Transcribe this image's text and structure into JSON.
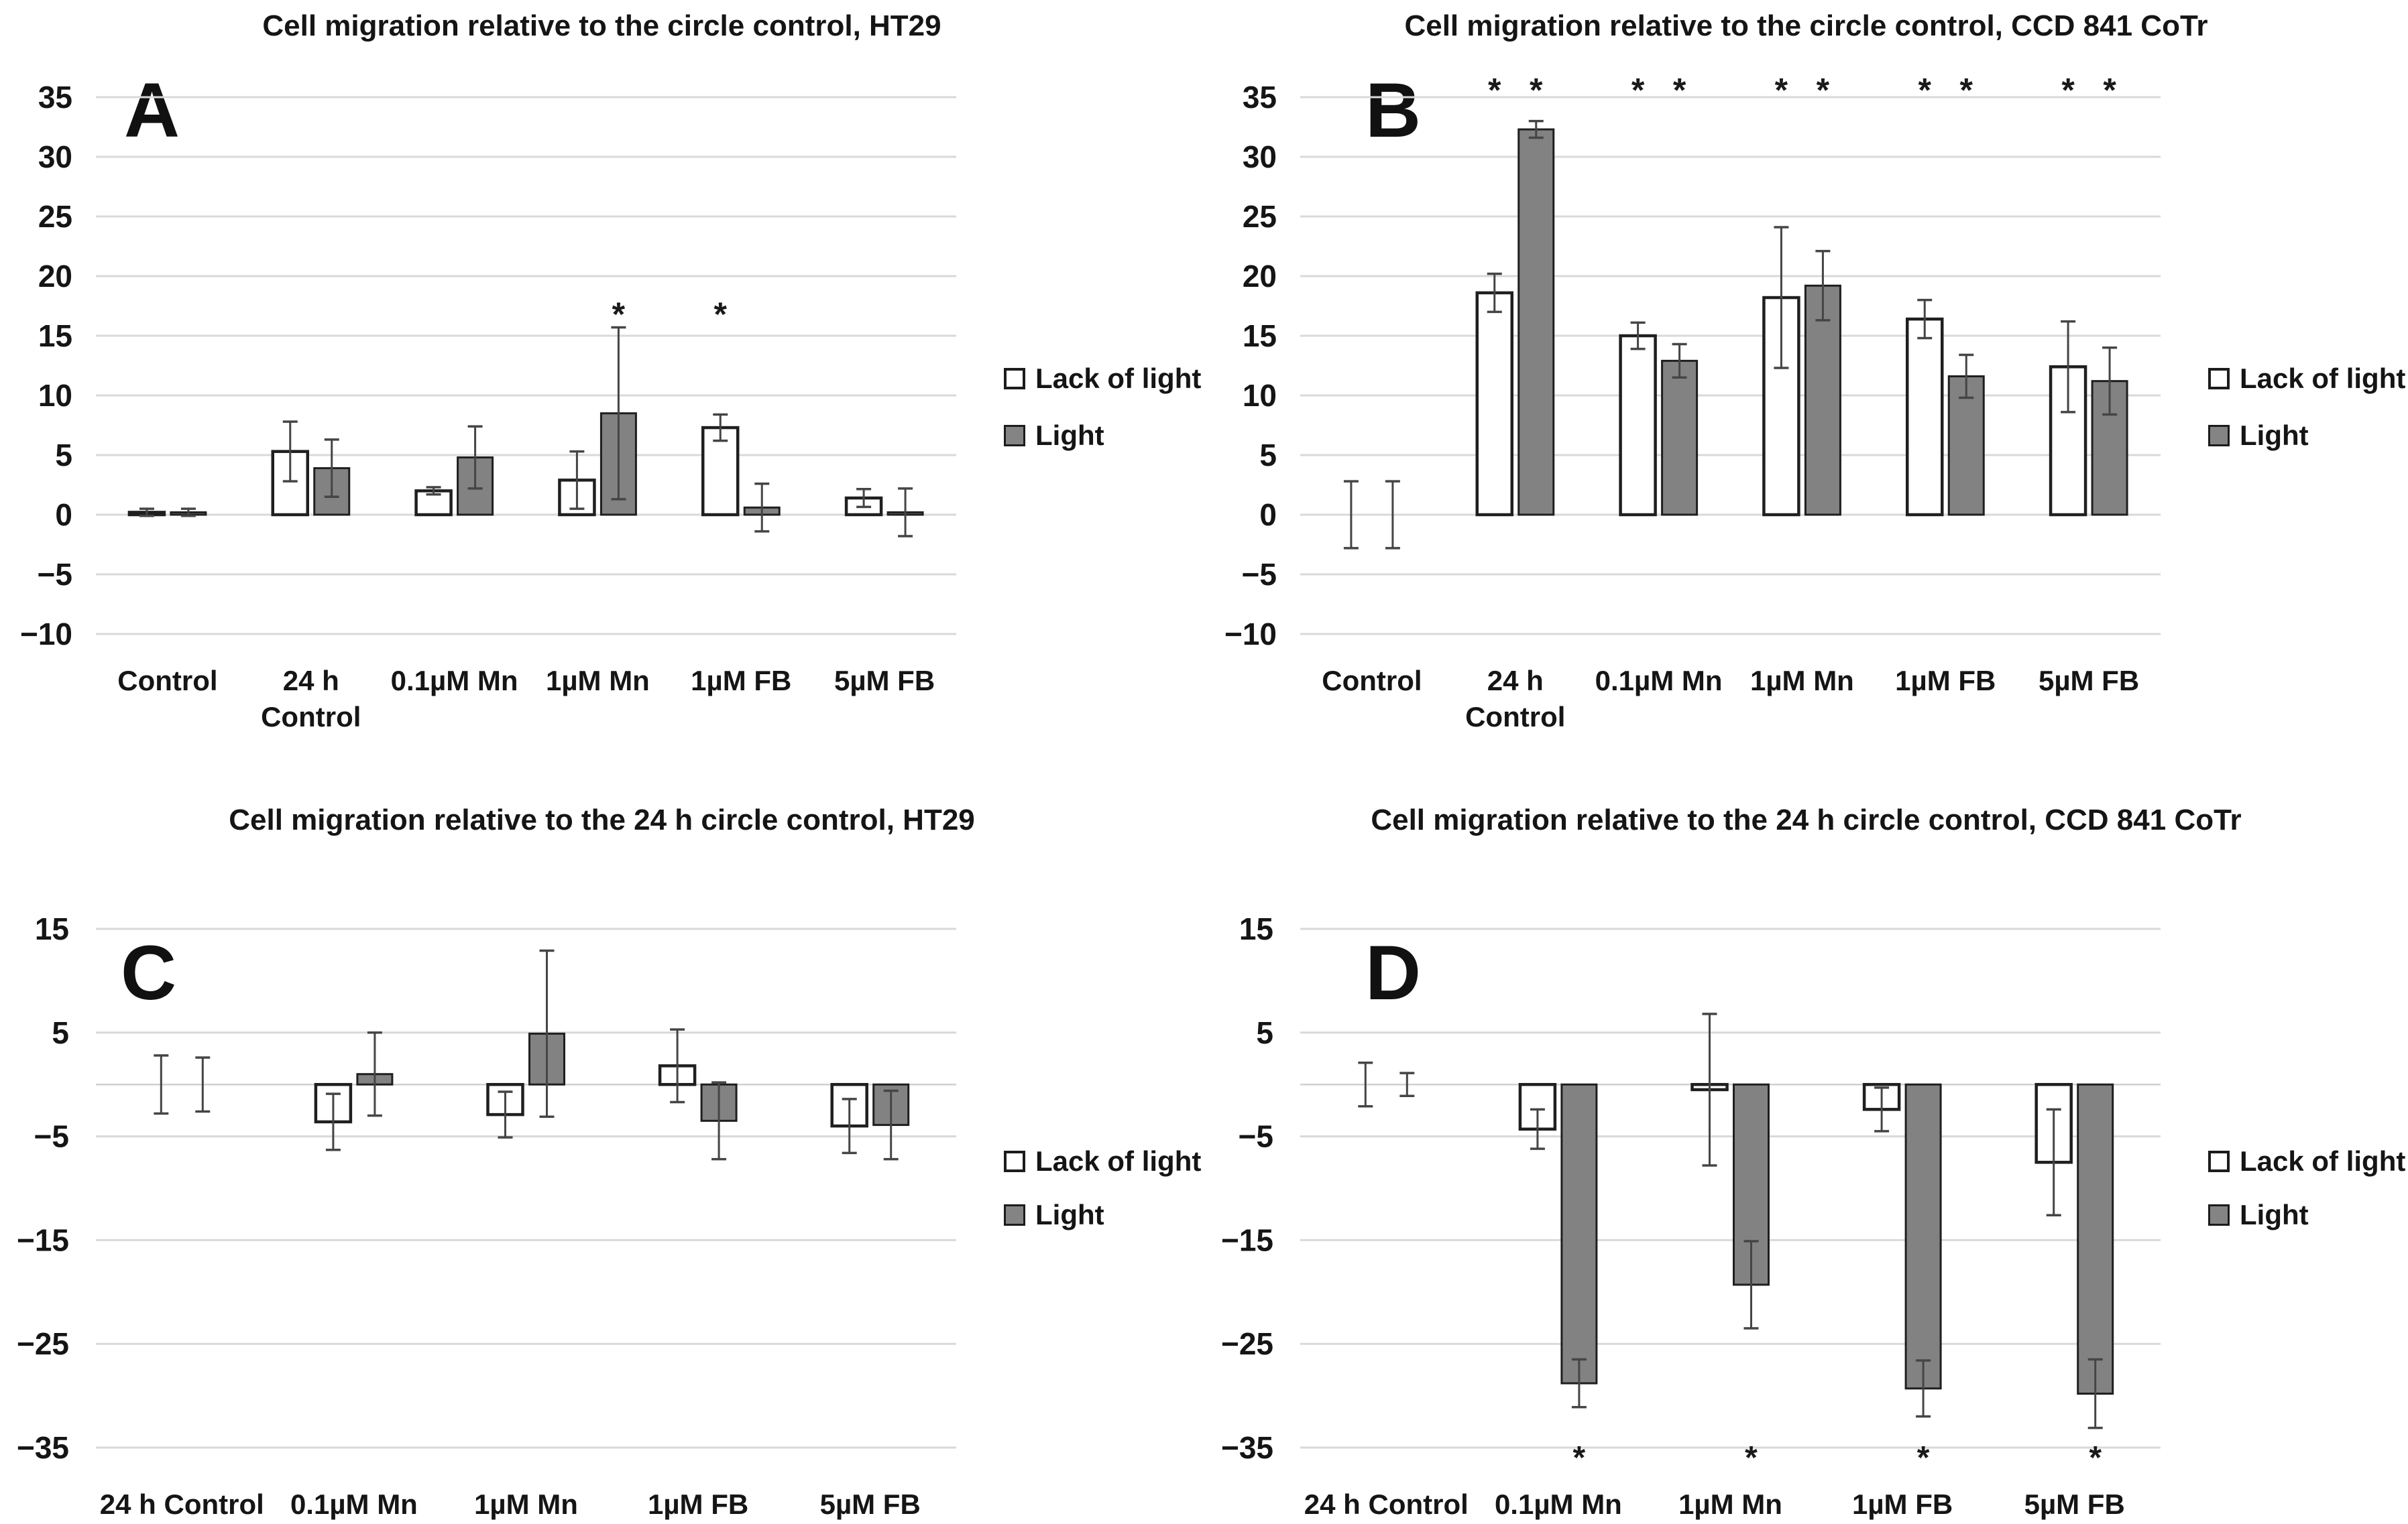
{
  "page": {
    "background": "#ffffff"
  },
  "colors": {
    "gridline": "#d9d9d9",
    "zero_axis": "#d0d0d0",
    "bar_lack_fill": "#ffffff",
    "bar_light_fill": "#828282",
    "bar_stroke": "#1f1f1f",
    "error_bar": "#454545",
    "text": "#151515",
    "asterisk": "#1a1a1a"
  },
  "legend": {
    "items": [
      {
        "label": "Lack of light",
        "swatch": "white-outlined-square"
      },
      {
        "label": "Light",
        "swatch": "gray-square"
      }
    ]
  },
  "chart_data": [
    {
      "panel_label": "A",
      "type": "bar",
      "title": "Cell migration relative to the circle control, HT29",
      "categories": [
        [
          "Control"
        ],
        [
          "24 h",
          "Control"
        ],
        [
          "0.1µM Mn"
        ],
        [
          "1µM Mn"
        ],
        [
          "1µM FB"
        ],
        [
          "5µM FB"
        ]
      ],
      "ylim": [
        -10,
        35
      ],
      "yticks": [
        35,
        30,
        25,
        20,
        15,
        10,
        5,
        0,
        -5,
        -10
      ],
      "grid": true,
      "legend_position": "right",
      "series": [
        {
          "name": "Lack of light",
          "values": [
            0.2,
            5.3,
            2.0,
            2.9,
            7.3,
            1.4
          ],
          "errors": [
            0.3,
            2.5,
            0.3,
            2.4,
            1.1,
            0.75
          ]
        },
        {
          "name": "Light",
          "values": [
            0.2,
            3.9,
            4.8,
            8.5,
            0.6,
            0.2
          ],
          "errors": [
            0.3,
            2.4,
            2.6,
            7.2,
            2.0,
            2.0
          ]
        }
      ],
      "asterisks": [
        {
          "cat": 3,
          "series": 1,
          "value": 16.8
        },
        {
          "cat": 4,
          "series": 0,
          "value": 16.8
        }
      ],
      "layout": {
        "plot_left": 143,
        "plot_right": 1426,
        "y_top": 145,
        "y_bottom": 946,
        "tick_x": 108,
        "tick_font": 46,
        "cat_font": 42,
        "cat_baseline": 1030,
        "cat_line_height": 54,
        "letter_x": 185,
        "letter_top": 108,
        "letter_font": 115,
        "title_top": 14,
        "legend_tops": [
          541,
          626
        ],
        "asterisk_font": 50
      }
    },
    {
      "panel_label": "B",
      "type": "bar",
      "title": "Cell migration relative to the circle control, CCD 841 CoTr",
      "categories": [
        [
          "Control"
        ],
        [
          "24 h",
          "Control"
        ],
        [
          "0.1µM Mn"
        ],
        [
          "1µM Mn"
        ],
        [
          "1µM FB"
        ],
        [
          "5µM FB"
        ]
      ],
      "ylim": [
        -10,
        35
      ],
      "yticks": [
        35,
        30,
        25,
        20,
        15,
        10,
        5,
        0,
        -5,
        -10
      ],
      "grid": true,
      "legend_position": "right",
      "series": [
        {
          "name": "Lack of light",
          "values": [
            0,
            18.6,
            15.0,
            18.2,
            16.4,
            12.4
          ],
          "errors": [
            2.8,
            1.6,
            1.1,
            5.9,
            1.6,
            3.8
          ]
        },
        {
          "name": "Light",
          "values": [
            0,
            32.3,
            12.9,
            19.2,
            11.6,
            11.2
          ],
          "errors": [
            2.8,
            0.7,
            1.4,
            2.9,
            1.8,
            2.8
          ]
        }
      ],
      "asterisks": [
        {
          "cat": 1,
          "series": 0,
          "value": 35.6
        },
        {
          "cat": 1,
          "series": 1,
          "value": 35.6
        },
        {
          "cat": 2,
          "series": 0,
          "value": 35.6
        },
        {
          "cat": 2,
          "series": 1,
          "value": 35.6
        },
        {
          "cat": 3,
          "series": 0,
          "value": 35.6
        },
        {
          "cat": 3,
          "series": 1,
          "value": 35.6
        },
        {
          "cat": 4,
          "series": 0,
          "value": 35.6
        },
        {
          "cat": 4,
          "series": 1,
          "value": 35.6
        },
        {
          "cat": 5,
          "series": 0,
          "value": 35.6
        },
        {
          "cat": 5,
          "series": 1,
          "value": 35.6
        }
      ],
      "layout": {
        "plot_left": 143,
        "plot_right": 1426,
        "y_top": 145,
        "y_bottom": 946,
        "tick_x": 108,
        "tick_font": 46,
        "cat_font": 42,
        "cat_baseline": 1030,
        "cat_line_height": 54,
        "letter_x": 240,
        "letter_top": 108,
        "letter_font": 115,
        "title_top": 14,
        "legend_tops": [
          541,
          626
        ],
        "asterisk_font": 50
      }
    },
    {
      "panel_label": "C",
      "type": "bar",
      "title": "Cell migration relative to the 24 h circle control, HT29",
      "categories": [
        [
          "24 h Control"
        ],
        [
          "0.1µM Mn"
        ],
        [
          "1µM Mn"
        ],
        [
          "1µM FB"
        ],
        [
          "5µM FB"
        ]
      ],
      "ylim": [
        -35,
        15
      ],
      "yticks": [
        15,
        5,
        -5,
        -15,
        -25,
        -35
      ],
      "grid": true,
      "zero_axis": true,
      "legend_position": "right",
      "series": [
        {
          "name": "Lack of light",
          "values": [
            0,
            -3.6,
            -2.9,
            1.8,
            -4.0
          ],
          "errors": [
            2.8,
            2.7,
            2.2,
            3.5,
            2.6
          ]
        },
        {
          "name": "Light",
          "values": [
            0,
            1.0,
            4.9,
            -3.5,
            -3.9
          ],
          "errors": [
            2.6,
            4.0,
            8.0,
            3.7,
            3.3
          ]
        }
      ],
      "asterisks": [],
      "layout": {
        "plot_left": 143,
        "plot_right": 1426,
        "y_top": 249,
        "y_bottom": 1023,
        "tick_x": 103,
        "tick_font": 46,
        "cat_font": 42,
        "cat_baseline": 1122,
        "cat_line_height": 54,
        "letter_x": 180,
        "letter_top": 258,
        "letter_font": 115,
        "title_top": 62,
        "legend_tops": [
          572,
          652
        ],
        "asterisk_font": 48
      }
    },
    {
      "panel_label": "D",
      "type": "bar",
      "title": "Cell migration relative to the 24 h circle control, CCD 841 CoTr",
      "categories": [
        [
          "24 h Control"
        ],
        [
          "0.1µM Mn"
        ],
        [
          "1µM Mn"
        ],
        [
          "1µM FB"
        ],
        [
          "5µM FB"
        ]
      ],
      "ylim": [
        -35,
        15
      ],
      "yticks": [
        15,
        5,
        -5,
        -15,
        -25,
        -35
      ],
      "grid": true,
      "zero_axis": true,
      "legend_position": "right",
      "series": [
        {
          "name": "Lack of light",
          "values": [
            0,
            -4.3,
            -0.5,
            -2.4,
            -7.5
          ],
          "errors": [
            2.1,
            1.9,
            7.3,
            2.1,
            5.1
          ]
        },
        {
          "name": "Light",
          "values": [
            0,
            -28.8,
            -19.3,
            -29.3,
            -29.8
          ],
          "errors": [
            1.1,
            2.3,
            4.2,
            2.7,
            3.3
          ]
        }
      ],
      "asterisks": [
        {
          "cat": 1,
          "series": 1,
          "value": -36
        },
        {
          "cat": 2,
          "series": 1,
          "value": -36
        },
        {
          "cat": 3,
          "series": 1,
          "value": -36
        },
        {
          "cat": 4,
          "series": 1,
          "value": -36
        }
      ],
      "layout": {
        "plot_left": 143,
        "plot_right": 1426,
        "y_top": 249,
        "y_bottom": 1023,
        "tick_x": 103,
        "tick_font": 46,
        "cat_font": 42,
        "cat_baseline": 1122,
        "cat_line_height": 54,
        "letter_x": 240,
        "letter_top": 258,
        "letter_font": 115,
        "title_top": 62,
        "legend_tops": [
          572,
          652
        ],
        "asterisk_font": 48
      }
    }
  ]
}
